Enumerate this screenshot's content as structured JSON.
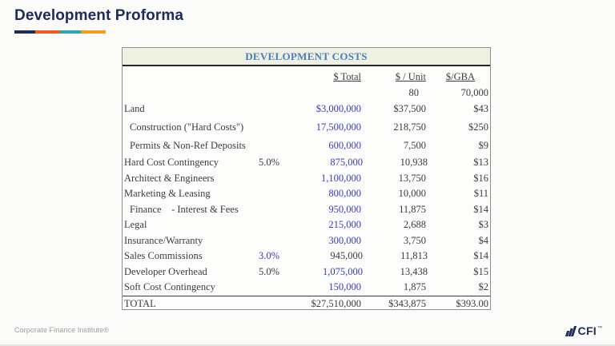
{
  "header": {
    "title": "Development Proforma"
  },
  "colors": {
    "navy": "#1e2a5a",
    "orange": "#f05a22",
    "teal": "#2ba7b4",
    "amber": "#f89b1c",
    "header_blue": "#4a7ebc",
    "header_bg": "#eef0e1",
    "input_blue": "#3a3ac8"
  },
  "table": {
    "title": "DEVELOPMENT COSTS",
    "columns": {
      "total": "$ Total",
      "per_unit": "$ / Unit",
      "per_gba": "$/GBA"
    },
    "units_row": {
      "per_unit": "80",
      "per_gba": "70,000"
    },
    "rows": [
      {
        "label": "Land",
        "pct": "",
        "total": "$3,000,000",
        "per_unit": "$37,500",
        "per_gba": "$43"
      },
      {
        "label": "Construction (\"Hard Costs\")",
        "pct": "",
        "total": "17,500,000",
        "per_unit": "218,750",
        "per_gba": "$250"
      },
      {
        "label": "Permits & Non-Ref Deposits",
        "pct": "",
        "total": "600,000",
        "per_unit": "7,500",
        "per_gba": "$9"
      },
      {
        "label": "Hard Cost Contingency",
        "pct": "5.0%",
        "total": "875,000",
        "per_unit": "10,938",
        "per_gba": "$13"
      },
      {
        "label": "Architect & Engineers",
        "pct": "",
        "total": "1,100,000",
        "per_unit": "13,750",
        "per_gba": "$16"
      },
      {
        "label": "Marketing & Leasing",
        "pct": "",
        "total": "800,000",
        "per_unit": "10,000",
        "per_gba": "$11"
      },
      {
        "label": "Finance    - Interest & Fees",
        "pct": "",
        "total": "950,000",
        "per_unit": "11,875",
        "per_gba": "$14"
      },
      {
        "label": "Legal",
        "pct": "",
        "total": "215,000",
        "per_unit": "2,688",
        "per_gba": "$3"
      },
      {
        "label": "Insurance/Warranty",
        "pct": "",
        "total": "300,000",
        "per_unit": "3,750",
        "per_gba": "$4"
      },
      {
        "label": "Sales Commissions",
        "pct": "3.0%",
        "total": "945,000",
        "per_unit": "11,813",
        "per_gba": "$14"
      },
      {
        "label": "Developer Overhead",
        "pct": "5.0%",
        "total": "1,075,000",
        "per_unit": "13,438",
        "per_gba": "$15"
      },
      {
        "label": "Soft Cost Contingency",
        "pct": "",
        "total": "150,000",
        "per_unit": "1,875",
        "per_gba": "$2"
      }
    ],
    "total_row": {
      "label": "TOTAL",
      "total": "$27,510,000",
      "per_unit": "$343,875",
      "per_gba": "$393.00"
    }
  },
  "footer": {
    "brand": "Corporate Finance Institute®",
    "logo_text": "CFI",
    "logo_tm": "™"
  }
}
